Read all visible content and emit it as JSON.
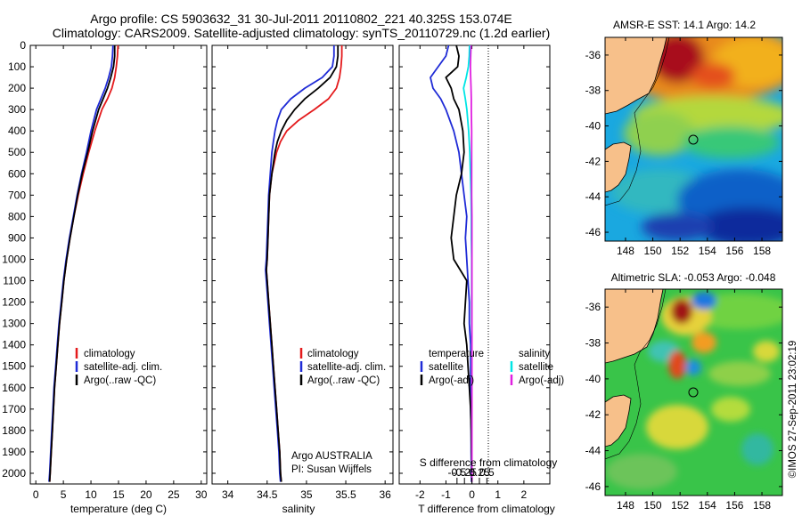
{
  "header": {
    "line1": "Argo profile: CS 5903632_31 30-Jul-2011 20110802_221 40.325S 153.074E",
    "line2": "Climatology: CARS2009. Satellite-adjusted climatology: synTS_20110729.nc (1.2d earlier)"
  },
  "credit": "©IMOS 27-Sep-2011 23:02:19",
  "colors": {
    "climatology": "#e41a1c",
    "satellite": "#1f2bd6",
    "argo": "#000000",
    "sat_temp": "#00e5e5",
    "argo_sal": "#e020e0",
    "land": "#f7c08a"
  },
  "chart_data": [
    {
      "id": "temperature",
      "type": "line",
      "xlabel": "temperature (deg C)",
      "ylabel": "",
      "xlim": [
        -1,
        31
      ],
      "ylim": [
        2050,
        0
      ],
      "xticks": [
        0,
        5,
        10,
        15,
        20,
        25,
        30
      ],
      "yticks": [
        0,
        100,
        200,
        300,
        400,
        500,
        600,
        700,
        800,
        900,
        1000,
        1100,
        1200,
        1300,
        1400,
        1500,
        1600,
        1700,
        1800,
        1900,
        2000
      ],
      "legend": [
        "climatology",
        "satellite-adj. clim.",
        "Argo(..raw -QC)"
      ],
      "legend_location": "lower-left",
      "series": [
        {
          "name": "climatology",
          "color": "#e41a1c",
          "depth": [
            0,
            50,
            100,
            150,
            200,
            250,
            300,
            400,
            500,
            600,
            700,
            800,
            900,
            1000,
            1100,
            1200,
            1300,
            1400,
            1500,
            1600,
            1700,
            1800,
            1900,
            2000,
            2040
          ],
          "values": [
            14.9,
            14.8,
            14.6,
            14.3,
            13.8,
            13.0,
            12.0,
            10.7,
            9.6,
            8.6,
            7.7,
            6.9,
            6.2,
            5.6,
            5.1,
            4.7,
            4.3,
            4.0,
            3.7,
            3.4,
            3.2,
            3.0,
            2.8,
            2.6,
            2.5
          ]
        },
        {
          "name": "satellite-adj. clim.",
          "color": "#1f2bd6",
          "depth": [
            0,
            50,
            100,
            150,
            200,
            250,
            300,
            400,
            500,
            600,
            700,
            800,
            900,
            1000,
            1100,
            1200,
            1300,
            1400,
            1500,
            1600,
            1700,
            1800,
            1900,
            2000,
            2040
          ],
          "values": [
            14.0,
            13.9,
            13.7,
            13.2,
            12.6,
            11.8,
            11.0,
            10.0,
            9.2,
            8.3,
            7.5,
            6.8,
            6.1,
            5.5,
            5.0,
            4.6,
            4.2,
            3.9,
            3.6,
            3.3,
            3.1,
            2.9,
            2.7,
            2.5,
            2.4
          ]
        },
        {
          "name": "Argo(..raw -QC)",
          "color": "#000000",
          "depth": [
            0,
            50,
            100,
            150,
            200,
            250,
            300,
            400,
            500,
            600,
            700,
            800,
            900,
            1000,
            1100,
            1200,
            1300,
            1400,
            1500,
            1600,
            1700,
            1800,
            1900,
            2000,
            2040
          ],
          "values": [
            14.3,
            14.3,
            14.1,
            13.6,
            13.0,
            12.2,
            11.4,
            10.3,
            9.4,
            8.4,
            7.6,
            6.9,
            6.2,
            5.6,
            5.1,
            4.7,
            4.3,
            4.0,
            3.7,
            3.4,
            3.2,
            3.0,
            2.8,
            2.6,
            2.5
          ]
        }
      ]
    },
    {
      "id": "salinity",
      "type": "line",
      "xlabel": "salinity",
      "xlim": [
        33.8,
        36.1
      ],
      "ylim": [
        2050,
        0
      ],
      "xticks": [
        34,
        34.5,
        35,
        35.5,
        36
      ],
      "legend": [
        "climatology",
        "satellite-adj. clim.",
        "Argo(..raw -QC)"
      ],
      "legend_location": "lower-right",
      "annotations": [
        "Argo AUSTRALIA",
        "PI: Susan Wijffels"
      ],
      "series": [
        {
          "name": "climatology",
          "color": "#e41a1c",
          "depth": [
            0,
            50,
            100,
            150,
            200,
            250,
            300,
            350,
            400,
            450,
            500,
            600,
            700,
            800,
            900,
            1000,
            1050,
            1100,
            1200,
            1300,
            1400,
            1500,
            1600,
            1700,
            1800,
            1900,
            2000,
            2040
          ],
          "values": [
            35.45,
            35.45,
            35.44,
            35.42,
            35.38,
            35.28,
            35.1,
            34.9,
            34.75,
            34.67,
            34.62,
            34.56,
            34.53,
            34.52,
            34.51,
            34.5,
            34.49,
            34.5,
            34.52,
            34.54,
            34.56,
            34.58,
            34.6,
            34.62,
            34.64,
            34.66,
            34.67,
            34.68
          ]
        },
        {
          "name": "satellite-adj. clim.",
          "color": "#1f2bd6",
          "depth": [
            0,
            50,
            100,
            150,
            200,
            250,
            300,
            350,
            400,
            450,
            500,
            600,
            700,
            800,
            900,
            1000,
            1050,
            1100,
            1200,
            1300,
            1400,
            1500,
            1600,
            1700,
            1800,
            1900,
            2000,
            2040
          ],
          "values": [
            35.35,
            35.35,
            35.33,
            35.2,
            34.98,
            34.8,
            34.68,
            34.63,
            34.6,
            34.58,
            34.56,
            34.54,
            34.52,
            34.51,
            34.5,
            34.49,
            34.48,
            34.49,
            34.51,
            34.53,
            34.55,
            34.57,
            34.59,
            34.61,
            34.63,
            34.65,
            34.66,
            34.67
          ]
        },
        {
          "name": "Argo(..raw -QC)",
          "color": "#000000",
          "depth": [
            0,
            50,
            100,
            150,
            200,
            250,
            300,
            350,
            400,
            450,
            500,
            600,
            700,
            800,
            900,
            1000,
            1050,
            1100,
            1200,
            1300,
            1400,
            1500,
            1600,
            1700,
            1800,
            1900,
            2000,
            2040
          ],
          "values": [
            35.4,
            35.4,
            35.38,
            35.3,
            35.15,
            34.98,
            34.85,
            34.75,
            34.68,
            34.63,
            34.6,
            34.56,
            34.53,
            34.52,
            34.51,
            34.5,
            34.49,
            34.5,
            34.52,
            34.54,
            34.56,
            34.58,
            34.6,
            34.62,
            34.64,
            34.66,
            34.67,
            34.68
          ]
        }
      ]
    },
    {
      "id": "difference",
      "type": "line",
      "xlabel_bottom": "T difference from climatology",
      "xlabel_top": "S difference from climatology",
      "xlim_T": [
        -2.8,
        3.0
      ],
      "xticks_T": [
        -2,
        -1,
        0,
        1,
        2
      ],
      "xticks_S": [
        -0.5,
        -0.25,
        0,
        0.25,
        0.5
      ],
      "xticklabels_S": [
        "-0.5",
        "-0.25",
        "0",
        "0.25",
        "0.5"
      ],
      "ylim": [
        2050,
        0
      ],
      "legend": {
        "temperature_heading": "temperature",
        "salinity_heading": "salinity",
        "satellite": "satellite",
        "argo_adj": "Argo(-adj)"
      },
      "series": [
        {
          "name": "temperature satellite",
          "color": "#1f2bd6",
          "depth": [
            0,
            50,
            100,
            150,
            200,
            250,
            300,
            400,
            500,
            600,
            700,
            800,
            900,
            1000,
            1100,
            1200,
            1300,
            1400,
            1500,
            1600,
            1700,
            1800,
            1900,
            2000,
            2040
          ],
          "values": [
            -0.9,
            -1.0,
            -1.3,
            -1.6,
            -1.5,
            -1.2,
            -1.0,
            -0.7,
            -0.5,
            -0.4,
            -0.3,
            -0.2,
            -0.25,
            -0.2,
            -0.15,
            -0.1,
            -0.1,
            -0.05,
            -0.05,
            -0.05,
            -0.05,
            -0.03,
            -0.03,
            -0.02,
            -0.02
          ]
        },
        {
          "name": "temperature Argo(-adj)",
          "color": "#000000",
          "depth": [
            0,
            50,
            100,
            150,
            200,
            250,
            300,
            400,
            500,
            600,
            700,
            800,
            900,
            1000,
            1100,
            1200,
            1300,
            1400,
            1500,
            1600,
            1700,
            1800,
            1900,
            2000,
            2040
          ],
          "values": [
            -0.6,
            -0.5,
            -0.55,
            -1.0,
            -0.8,
            -0.7,
            -0.5,
            -0.35,
            -0.3,
            -0.4,
            -0.6,
            -0.7,
            -0.8,
            -0.7,
            -0.2,
            -0.25,
            -0.3,
            -0.2,
            -0.15,
            -0.1,
            -0.05,
            -0.03,
            -0.02,
            -0.01,
            -0.01
          ]
        },
        {
          "name": "salinity satellite",
          "color": "#00e5e5",
          "depth": [
            0,
            50,
            100,
            150,
            200,
            250,
            300,
            400,
            500,
            600,
            700,
            800,
            900,
            1000,
            1100,
            1200,
            1300,
            1400,
            1500,
            1600,
            1700,
            1800,
            1900,
            2000,
            2040
          ],
          "values": [
            -0.08,
            -0.09,
            -0.12,
            -0.19,
            -0.28,
            -0.22,
            -0.17,
            -0.11,
            -0.07,
            -0.05,
            -0.03,
            -0.02,
            -0.02,
            -0.01,
            -0.01,
            -0.01,
            -0.01,
            -0.01,
            -0.01,
            0,
            0,
            0,
            0,
            0,
            0
          ]
        },
        {
          "name": "salinity Argo(-adj)",
          "color": "#e020e0",
          "depth": [
            0,
            50,
            100,
            150,
            200,
            250,
            300,
            400,
            500,
            600,
            700,
            800,
            900,
            1000,
            1100,
            1200,
            1300,
            1400,
            1500,
            1600,
            1700,
            1800,
            1900,
            2000,
            2040
          ],
          "values": [
            -0.03,
            -0.04,
            -0.05,
            -0.04,
            -0.03,
            -0.02,
            -0.02,
            -0.01,
            -0.01,
            -0.01,
            -0.01,
            0,
            0,
            0,
            0,
            0,
            0,
            0,
            0,
            0,
            0,
            0,
            0,
            0,
            0
          ]
        }
      ]
    },
    {
      "id": "sst-map",
      "type": "heatmap",
      "title": "AMSR-E SST: 14.1 Argo: 14.2",
      "xticks": [
        148,
        150,
        152,
        154,
        156,
        158
      ],
      "yticks": [
        -36,
        -38,
        -40,
        -42,
        -44,
        -46
      ],
      "xlim": [
        146.5,
        159.5
      ],
      "ylim": [
        -46.5,
        -35
      ],
      "marker": {
        "lon": 153.074,
        "lat": -40.325
      }
    },
    {
      "id": "sla-map",
      "type": "heatmap",
      "title": "Altimetric SLA: -0.053 Argo: -0.048",
      "xticks": [
        148,
        150,
        152,
        154,
        156,
        158
      ],
      "yticks": [
        -36,
        -38,
        -40,
        -42,
        -44,
        -46
      ],
      "xlim": [
        146.5,
        159.5
      ],
      "ylim": [
        -46.5,
        -35
      ],
      "marker": {
        "lon": 153.074,
        "lat": -40.325
      }
    }
  ]
}
